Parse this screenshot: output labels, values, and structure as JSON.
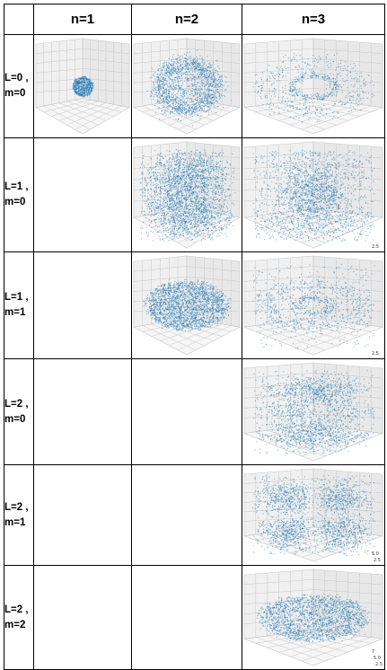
{
  "header": {
    "corner": "",
    "columns": [
      "n=1",
      "n=2",
      "n=3"
    ]
  },
  "rows": [
    {
      "label_line1": "L=0 ,",
      "label_line2": "m=0",
      "cells": [
        {
          "present": true,
          "shape": "small-sphere"
        },
        {
          "present": true,
          "shape": "sphere-with-node"
        },
        {
          "present": true,
          "shape": "two-shell-ring"
        }
      ]
    },
    {
      "label_line1": "L=1 ,",
      "label_line2": "m=0",
      "cells": [
        {
          "present": false
        },
        {
          "present": true,
          "shape": "dumbbell-vertical"
        },
        {
          "present": true,
          "shape": "dumbbell-with-outer-lobes",
          "tick": "2.5"
        }
      ]
    },
    {
      "label_line1": "L=1 ,",
      "label_line2": "m=1",
      "cells": [
        {
          "present": false
        },
        {
          "present": true,
          "shape": "torus"
        },
        {
          "present": true,
          "shape": "torus-with-outer-shell",
          "tick": "2.5"
        }
      ]
    },
    {
      "label_line1": "L=2 ,",
      "label_line2": "m=0",
      "cells": [
        {
          "present": false
        },
        {
          "present": false
        },
        {
          "present": true,
          "shape": "dz2-lobes"
        }
      ]
    },
    {
      "label_line1": "L=2 ,",
      "label_line2": "m=1",
      "cells": [
        {
          "present": false
        },
        {
          "present": false
        },
        {
          "present": true,
          "shape": "four-lobe-cloverleaf",
          "ticks": [
            "5.0",
            "2.5"
          ]
        }
      ]
    },
    {
      "label_line1": "L=2 ,",
      "label_line2": "m=2",
      "cells": [
        {
          "present": false
        },
        {
          "present": false
        },
        {
          "present": true,
          "shape": "flattened-double-torus",
          "ticks": [
            "7",
            "5.0",
            "2.5"
          ]
        }
      ]
    }
  ],
  "colors": {
    "scatter": "#1f77b4",
    "pane": "#f0f0f0",
    "grid": "#c8c8c8",
    "border": "#000000"
  }
}
